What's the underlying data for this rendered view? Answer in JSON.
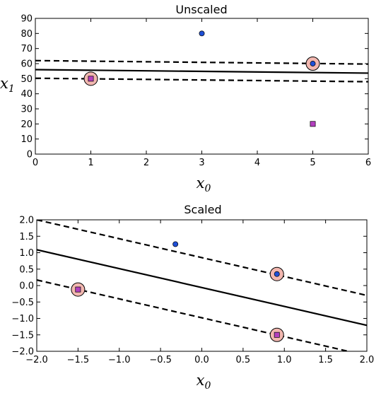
{
  "chart_data": [
    {
      "type": "scatter",
      "title": "Unscaled",
      "xlabel": "x",
      "xlabel_subscript": "0",
      "ylabel": "x",
      "ylabel_subscript": "1",
      "xlim": [
        0,
        6
      ],
      "ylim": [
        0,
        90
      ],
      "xticks": [
        0,
        1,
        2,
        3,
        4,
        5,
        6
      ],
      "yticks": [
        0,
        10,
        20,
        30,
        40,
        50,
        60,
        70,
        80,
        90
      ],
      "grid": false,
      "legend": false,
      "colors": {
        "positive": "#1f4fd6",
        "negative": "#b43fbf",
        "support_vector_fill": "#f2b7b0"
      },
      "series": [
        {
          "marker": "circle",
          "color": "#1f4fd6",
          "points": [
            [
              3,
              80
            ],
            [
              5,
              60
            ]
          ]
        },
        {
          "marker": "square",
          "color": "#b43fbf",
          "points": [
            [
              1,
              50
            ],
            [
              5,
              20
            ]
          ]
        }
      ],
      "support_vectors": [
        [
          1,
          50
        ],
        [
          5,
          60
        ]
      ],
      "lines": [
        {
          "style": "solid",
          "x": [
            0,
            6
          ],
          "y": [
            56.0,
            53.7
          ]
        },
        {
          "style": "dashed",
          "x": [
            0,
            6
          ],
          "y": [
            62.0,
            59.7
          ]
        },
        {
          "style": "dashed",
          "x": [
            0,
            6
          ],
          "y": [
            50.3,
            48.0
          ]
        }
      ]
    },
    {
      "type": "scatter",
      "title": "Scaled",
      "xlabel": "x",
      "xlabel_subscript": "0",
      "ylabel": "",
      "xlim": [
        -2.0,
        2.0
      ],
      "ylim": [
        -2.0,
        2.0
      ],
      "xticks": [
        -2.0,
        -1.5,
        -1.0,
        -0.5,
        0.0,
        0.5,
        1.0,
        1.5,
        2.0
      ],
      "yticks": [
        -2.0,
        -1.5,
        -1.0,
        -0.5,
        0.0,
        0.5,
        1.0,
        1.5,
        2.0
      ],
      "grid": false,
      "legend": false,
      "colors": {
        "positive": "#1f4fd6",
        "negative": "#b43fbf",
        "support_vector_fill": "#f2b7b0"
      },
      "series": [
        {
          "marker": "circle",
          "color": "#1f4fd6",
          "points": [
            [
              -0.32,
              1.26
            ],
            [
              0.91,
              0.35
            ]
          ]
        },
        {
          "marker": "square",
          "color": "#b43fbf",
          "points": [
            [
              -1.5,
              -0.12
            ],
            [
              0.91,
              -1.5
            ]
          ]
        }
      ],
      "support_vectors": [
        [
          -1.5,
          -0.12
        ],
        [
          0.91,
          0.35
        ],
        [
          0.91,
          -1.5
        ]
      ],
      "lines": [
        {
          "style": "solid",
          "x": [
            -2.0,
            2.0
          ],
          "y": [
            1.09,
            -1.21
          ]
        },
        {
          "style": "dashed",
          "x": [
            -2.0,
            2.0
          ],
          "y": [
            2.0,
            -0.3
          ]
        },
        {
          "style": "dashed",
          "x": [
            -2.0,
            2.0
          ],
          "y": [
            0.17,
            -2.13
          ]
        }
      ]
    }
  ]
}
